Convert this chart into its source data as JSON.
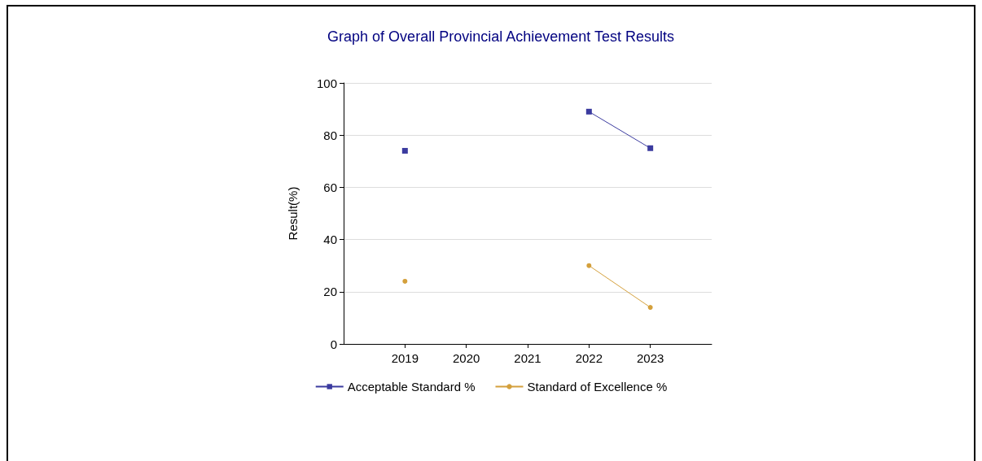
{
  "chart_data": {
    "type": "line",
    "title": "Graph of Overall Provincial Achievement Test Results",
    "ylabel": "Result(%)",
    "x": [
      2019,
      2020,
      2021,
      2022,
      2023
    ],
    "xlim": [
      2018,
      2024
    ],
    "xticks": [
      2019,
      2020,
      2021,
      2022,
      2023
    ],
    "ylim": [
      0,
      100
    ],
    "yticks": [
      0,
      20,
      40,
      60,
      80,
      100
    ],
    "grid": "y",
    "legend": "bottom",
    "line_style": "solid",
    "series": [
      {
        "name": "Acceptable Standard %",
        "color": "#3b3b9f",
        "marker": "square",
        "values": [
          74,
          null,
          null,
          89,
          75
        ]
      },
      {
        "name": "Standard of Excellence %",
        "color": "#d4a03c",
        "marker": "circle",
        "values": [
          24,
          null,
          null,
          30,
          14
        ]
      }
    ]
  }
}
